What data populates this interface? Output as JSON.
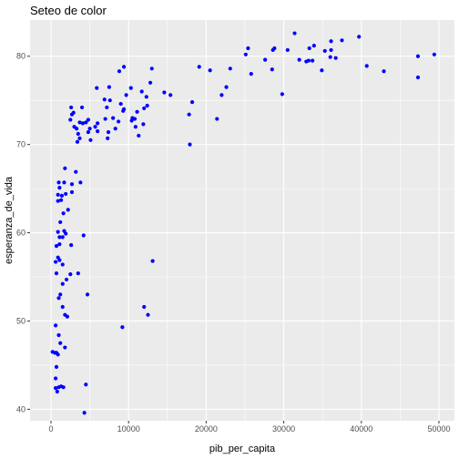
{
  "chart_data": {
    "type": "scatter",
    "title": "Seteo de color",
    "xlabel": "pib_per_capita",
    "ylabel": "esperanza_de_vida",
    "xlim": [
      -2700,
      52000
    ],
    "ylim": [
      38.7,
      84.1
    ],
    "xticks": [
      0,
      10000,
      20000,
      30000,
      40000,
      50000
    ],
    "xtick_labels": [
      "0",
      "10000",
      "20000",
      "30000",
      "40000",
      "50000"
    ],
    "yticks": [
      40,
      50,
      60,
      70,
      80
    ],
    "ytick_labels": [
      "40",
      "50",
      "60",
      "70",
      "80"
    ],
    "grid": true,
    "legend": "none",
    "point_color": "#0000FF",
    "panel_background": "#EBEBEB",
    "grid_color": "#FFFFFF",
    "points": [
      [
        200,
        46.5
      ],
      [
        500,
        46.4
      ],
      [
        700,
        46.4
      ],
      [
        900,
        46.2
      ],
      [
        600,
        43.5
      ],
      [
        700,
        44.8
      ],
      [
        600,
        42.4
      ],
      [
        800,
        42.0
      ],
      [
        1000,
        42.5
      ],
      [
        1300,
        42.6
      ],
      [
        1600,
        42.5
      ],
      [
        600,
        49.5
      ],
      [
        1000,
        48.4
      ],
      [
        1200,
        47.5
      ],
      [
        1800,
        47.0
      ],
      [
        1800,
        50.7
      ],
      [
        2100,
        50.5
      ],
      [
        1500,
        51.6
      ],
      [
        1000,
        52.6
      ],
      [
        1200,
        53.0
      ],
      [
        1500,
        54.2
      ],
      [
        2000,
        54.7
      ],
      [
        700,
        55.4
      ],
      [
        600,
        56.7
      ],
      [
        1100,
        56.9
      ],
      [
        1500,
        56.4
      ],
      [
        900,
        57.2
      ],
      [
        700,
        58.5
      ],
      [
        1100,
        58.7
      ],
      [
        1100,
        59.5
      ],
      [
        1500,
        59.5
      ],
      [
        2600,
        58.6
      ],
      [
        900,
        60.1
      ],
      [
        1700,
        60.2
      ],
      [
        1900,
        59.9
      ],
      [
        1200,
        61.2
      ],
      [
        1600,
        62.2
      ],
      [
        2200,
        62.6
      ],
      [
        900,
        63.6
      ],
      [
        1300,
        63.7
      ],
      [
        900,
        64.3
      ],
      [
        1400,
        64.2
      ],
      [
        1900,
        64.4
      ],
      [
        2700,
        64.6
      ],
      [
        1100,
        65.1
      ],
      [
        1700,
        65.7
      ],
      [
        2700,
        65.5
      ],
      [
        1000,
        65.7
      ],
      [
        1800,
        67.3
      ],
      [
        3200,
        66.9
      ],
      [
        3800,
        65.7
      ],
      [
        3500,
        55.4
      ],
      [
        2500,
        55.3
      ],
      [
        4200,
        59.7
      ],
      [
        4700,
        53.0
      ],
      [
        4500,
        42.8
      ],
      [
        4300,
        39.6
      ],
      [
        2500,
        72.8
      ],
      [
        2700,
        73.4
      ],
      [
        3000,
        72.0
      ],
      [
        2900,
        73.6
      ],
      [
        2600,
        74.2
      ],
      [
        3300,
        71.8
      ],
      [
        3700,
        72.5
      ],
      [
        3500,
        71.2
      ],
      [
        3700,
        70.7
      ],
      [
        3400,
        70.3
      ],
      [
        4000,
        74.2
      ],
      [
        4100,
        72.4
      ],
      [
        4500,
        72.5
      ],
      [
        4800,
        72.8
      ],
      [
        4800,
        71.4
      ],
      [
        5100,
        70.5
      ],
      [
        5000,
        71.8
      ],
      [
        5700,
        72.0
      ],
      [
        6000,
        72.4
      ],
      [
        6000,
        71.5
      ],
      [
        5900,
        76.4
      ],
      [
        6900,
        75.1
      ],
      [
        7200,
        74.2
      ],
      [
        7000,
        72.9
      ],
      [
        7400,
        71.4
      ],
      [
        7300,
        70.7
      ],
      [
        7500,
        76.5
      ],
      [
        7600,
        75.0
      ],
      [
        8000,
        73.0
      ],
      [
        8300,
        71.8
      ],
      [
        8700,
        72.6
      ],
      [
        9000,
        74.6
      ],
      [
        9300,
        73.8
      ],
      [
        9400,
        74.0
      ],
      [
        8800,
        78.3
      ],
      [
        9400,
        78.8
      ],
      [
        9700,
        75.6
      ],
      [
        10300,
        76.4
      ],
      [
        10500,
        73.0
      ],
      [
        10400,
        72.7
      ],
      [
        10800,
        72.9
      ],
      [
        11100,
        73.7
      ],
      [
        11300,
        71.0
      ],
      [
        11700,
        76.0
      ],
      [
        12000,
        74.1
      ],
      [
        12400,
        74.4
      ],
      [
        12300,
        75.4
      ],
      [
        11900,
        72.3
      ],
      [
        10900,
        72.0
      ],
      [
        12800,
        77.0
      ],
      [
        13000,
        78.6
      ],
      [
        14600,
        75.9
      ],
      [
        15400,
        75.6
      ],
      [
        13100,
        56.8
      ],
      [
        12000,
        51.6
      ],
      [
        12500,
        50.7
      ],
      [
        9200,
        49.3
      ],
      [
        17800,
        73.4
      ],
      [
        18200,
        74.8
      ],
      [
        19100,
        78.8
      ],
      [
        17900,
        70.0
      ],
      [
        20500,
        78.4
      ],
      [
        21400,
        72.9
      ],
      [
        22000,
        75.6
      ],
      [
        22600,
        76.5
      ],
      [
        23100,
        78.6
      ],
      [
        25100,
        80.2
      ],
      [
        25400,
        80.9
      ],
      [
        25800,
        78.0
      ],
      [
        27600,
        79.6
      ],
      [
        28500,
        78.5
      ],
      [
        28600,
        80.7
      ],
      [
        28800,
        80.9
      ],
      [
        29800,
        75.7
      ],
      [
        30500,
        80.7
      ],
      [
        31400,
        82.6
      ],
      [
        32000,
        79.6
      ],
      [
        32900,
        79.4
      ],
      [
        33300,
        80.9
      ],
      [
        33200,
        79.5
      ],
      [
        33700,
        79.5
      ],
      [
        33900,
        81.2
      ],
      [
        34900,
        78.4
      ],
      [
        35300,
        80.6
      ],
      [
        36000,
        79.9
      ],
      [
        36100,
        80.7
      ],
      [
        36100,
        81.7
      ],
      [
        36700,
        79.8
      ],
      [
        37500,
        81.8
      ],
      [
        39700,
        82.2
      ],
      [
        40700,
        78.9
      ],
      [
        42900,
        78.3
      ],
      [
        47300,
        80.0
      ],
      [
        47300,
        77.6
      ],
      [
        49400,
        80.2
      ]
    ]
  }
}
